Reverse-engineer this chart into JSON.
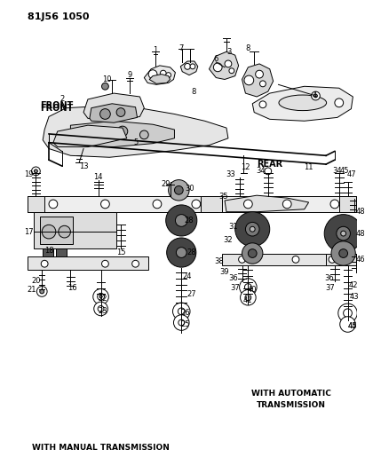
{
  "background_color": "#ffffff",
  "line_color": "#000000",
  "text_color": "#000000",
  "fig_width": 4.11,
  "fig_height": 5.33,
  "dpi": 100,
  "title": "81J56 1050",
  "label_front": "FRONT",
  "label_rear": "REAR",
  "label_manual": "WITH MANUAL TRANSMISSION",
  "label_auto1": "WITH AUTOMATIC",
  "label_auto2": "TRANSMISSION"
}
